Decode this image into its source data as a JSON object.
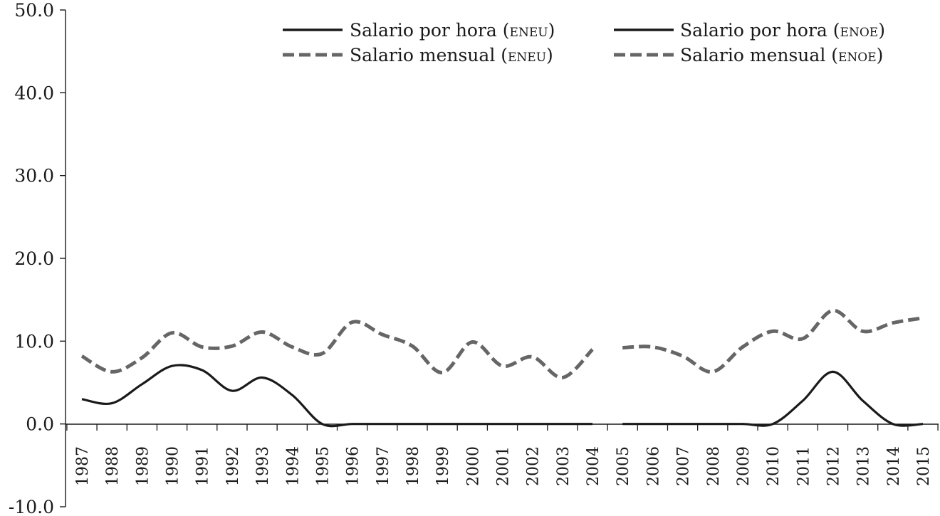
{
  "chart_data": {
    "type": "line",
    "title": "",
    "xlabel": "",
    "ylabel": "",
    "ylim": [
      -10.0,
      50.0
    ],
    "y_ticks": [
      "50.0",
      "40.0",
      "30.0",
      "20.0",
      "10.0",
      "0.0",
      "-10.0"
    ],
    "y_tick_values": [
      50,
      40,
      30,
      20,
      10,
      0,
      -10
    ],
    "categories": [
      "1987",
      "1988",
      "1989",
      "1990",
      "1991",
      "1992",
      "1993",
      "1994",
      "1995",
      "1996",
      "1997",
      "1998",
      "1999",
      "2000",
      "2001",
      "2002",
      "2003",
      "2004",
      "2005",
      "2006",
      "2007",
      "2008",
      "2009",
      "2010",
      "2011",
      "2012",
      "2013",
      "2014",
      "2015"
    ],
    "grid": false,
    "legend_position": "top-right",
    "series": [
      {
        "name": "Salario por hora (ENEU)",
        "style": "solid",
        "color": "#1a1a1a",
        "values": [
          3.0,
          2.5,
          4.8,
          7.0,
          6.5,
          4.0,
          5.6,
          3.5,
          0.0,
          0.0,
          0.0,
          0.0,
          0.0,
          0.0,
          0.0,
          0.0,
          0.0,
          0.0,
          null,
          null,
          null,
          null,
          null,
          null,
          null,
          null,
          null,
          null,
          null
        ]
      },
      {
        "name": "Salario por hora (ENOE)",
        "style": "solid",
        "color": "#1a1a1a",
        "values": [
          null,
          null,
          null,
          null,
          null,
          null,
          null,
          null,
          null,
          null,
          null,
          null,
          null,
          null,
          null,
          null,
          null,
          null,
          0.0,
          0.0,
          0.0,
          0.0,
          0.0,
          0.0,
          2.8,
          6.3,
          2.8,
          0.0,
          0.0
        ]
      },
      {
        "name": "Salario mensual (ENEU)",
        "style": "dashed",
        "color": "#666666",
        "values": [
          8.2,
          6.3,
          8.0,
          11.0,
          9.3,
          9.4,
          11.1,
          9.3,
          8.5,
          12.3,
          10.8,
          9.4,
          6.2,
          9.9,
          7.0,
          8.1,
          5.6,
          9.0,
          null,
          null,
          null,
          null,
          null,
          null,
          null,
          null,
          null,
          null,
          null
        ]
      },
      {
        "name": "Salario mensual (ENOE)",
        "style": "dashed",
        "color": "#666666",
        "values": [
          null,
          null,
          null,
          null,
          null,
          null,
          null,
          null,
          null,
          null,
          null,
          null,
          null,
          null,
          null,
          null,
          null,
          null,
          9.2,
          9.3,
          8.2,
          6.3,
          9.3,
          11.2,
          10.3,
          13.7,
          11.2,
          12.2,
          12.8
        ]
      }
    ],
    "legend": [
      {
        "label": "Salario por hora",
        "suffix": "ENEU",
        "style": "solid",
        "color": "#1a1a1a"
      },
      {
        "label": "Salario por hora",
        "suffix": "ENOE",
        "style": "solid",
        "color": "#1a1a1a"
      },
      {
        "label": "Salario mensual",
        "suffix": "ENEU",
        "style": "dashed",
        "color": "#666666"
      },
      {
        "label": "Salario mensual",
        "suffix": "ENOE",
        "style": "dashed",
        "color": "#666666"
      }
    ]
  }
}
